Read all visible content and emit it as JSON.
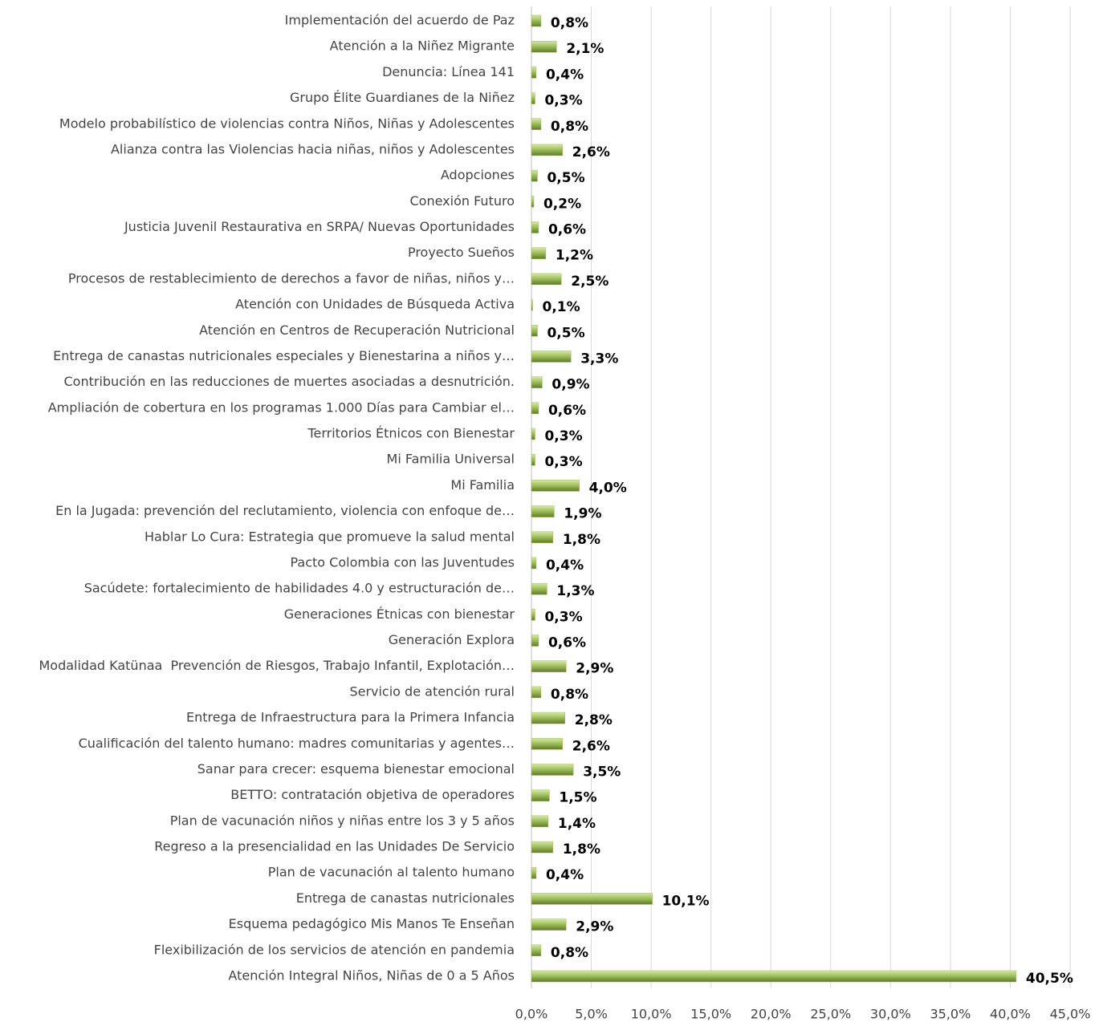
{
  "chart_data": {
    "type": "barh",
    "categories": [
      "Implementación del acuerdo de Paz",
      "Atención a la Niñez Migrante",
      "Denuncia: Línea 141",
      "Grupo Élite Guardianes de la Niñez",
      "Modelo probabilístico de violencias contra Niños, Niñas y Adolescentes",
      "Alianza contra las Violencias hacia niñas, niños y Adolescentes",
      "Adopciones",
      "Conexión Futuro",
      "Justicia Juvenil Restaurativa en SRPA/ Nuevas Oportunidades",
      "Proyecto Sueños",
      "Procesos de restablecimiento de derechos a favor de niñas, niños y…",
      "Atención con Unidades de Búsqueda Activa",
      "Atención en Centros de Recuperación Nutricional",
      "Entrega de canastas nutricionales especiales y Bienestarina a niños y…",
      "Contribución en las reducciones de muertes asociadas a desnutrición.",
      "Ampliación de cobertura en los programas 1.000 Días para Cambiar el…",
      "Territorios Étnicos con Bienestar",
      "Mi Familia Universal",
      "Mi Familia",
      "En la Jugada: prevención del reclutamiento, violencia con enfoque de…",
      "Hablar Lo Cura: Estrategia que promueve la salud mental",
      "Pacto Colombia con las Juventudes",
      "Sacúdete: fortalecimiento de habilidades 4.0 y estructuración de…",
      "Generaciones Étnicas con bienestar",
      "Generación Explora",
      "Modalidad Katünaa  Prevención de Riesgos, Trabajo Infantil, Explotación…",
      "Servicio de atención rural",
      "Entrega de Infraestructura para la Primera Infancia",
      "Cualificación del talento humano: madres comunitarias y agentes…",
      "Sanar para crecer: esquema bienestar emocional",
      "BETTO: contratación objetiva de operadores",
      "Plan de vacunación niños y niñas entre los 3 y 5 años",
      "Regreso a la presencialidad en las Unidades De Servicio",
      "Plan de vacunación al talento humano",
      "Entrega de canastas nutricionales",
      "Esquema pedagógico Mis Manos Te Enseñan",
      "Flexibilización de los servicios de atención en pandemia",
      "Atención Integral Niños, Niñas de 0 a 5 Años"
    ],
    "values": [
      0.8,
      2.1,
      0.4,
      0.3,
      0.8,
      2.6,
      0.5,
      0.2,
      0.6,
      1.2,
      2.5,
      0.1,
      0.5,
      3.3,
      0.9,
      0.6,
      0.3,
      0.3,
      4.0,
      1.9,
      1.8,
      0.4,
      1.3,
      0.3,
      0.6,
      2.9,
      0.8,
      2.8,
      2.6,
      3.5,
      1.5,
      1.4,
      1.8,
      0.4,
      10.1,
      2.9,
      0.8,
      40.5
    ],
    "value_labels": [
      "0,8%",
      "2,1%",
      "0,4%",
      "0,3%",
      "0,8%",
      "2,6%",
      "0,5%",
      "0,2%",
      "0,6%",
      "1,2%",
      "2,5%",
      "0,1%",
      "0,5%",
      "3,3%",
      "0,9%",
      "0,6%",
      "0,3%",
      "0,3%",
      "4,0%",
      "1,9%",
      "1,8%",
      "0,4%",
      "1,3%",
      "0,3%",
      "0,6%",
      "2,9%",
      "0,8%",
      "2,8%",
      "2,6%",
      "3,5%",
      "1,5%",
      "1,4%",
      "1,8%",
      "0,4%",
      "10,1%",
      "2,9%",
      "0,8%",
      "40,5%"
    ],
    "color": "#9bbb59",
    "xlim": [
      0,
      45
    ],
    "xticks": [
      {
        "value": 0,
        "label": "0,0%"
      },
      {
        "value": 5,
        "label": "5,0%"
      },
      {
        "value": 10,
        "label": "10,0%"
      },
      {
        "value": 15,
        "label": "15,0%"
      },
      {
        "value": 20,
        "label": "20,0%"
      },
      {
        "value": 25,
        "label": "25,0%"
      },
      {
        "value": 30,
        "label": "30,0%"
      },
      {
        "value": 35,
        "label": "35,0%"
      },
      {
        "value": 40,
        "label": "40,0%"
      },
      {
        "value": 45,
        "label": "45,0%"
      }
    ],
    "grid": true
  }
}
